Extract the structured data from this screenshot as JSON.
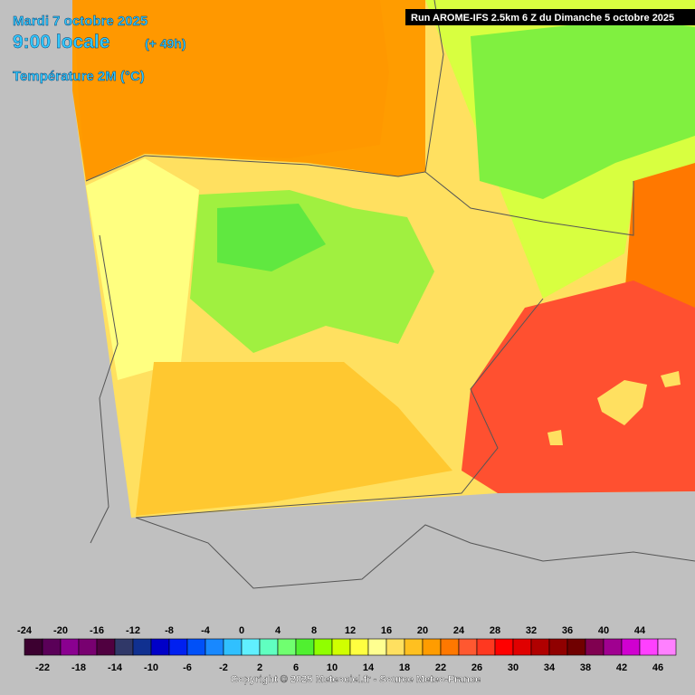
{
  "header": {
    "date": "Mardi 7 octobre 2025",
    "time": "9:00 locale",
    "lead": "(+ 49h)",
    "variable": "Température 2M (°C)",
    "run": "Run AROME-IFS 2.5km 6 Z du Dimanche 5 octobre 2025"
  },
  "legend": {
    "values": [
      -24,
      -22,
      -20,
      -18,
      -16,
      -14,
      -12,
      -10,
      -8,
      -6,
      -4,
      -2,
      0,
      2,
      4,
      6,
      8,
      10,
      12,
      14,
      16,
      18,
      20,
      22,
      24,
      26,
      28,
      30,
      32,
      34,
      36,
      38,
      40,
      42,
      44,
      46
    ],
    "colors": [
      "#3c0030",
      "#5a0058",
      "#8a0090",
      "#780070",
      "#500040",
      "#303868",
      "#103090",
      "#0000c8",
      "#0020f0",
      "#0050f8",
      "#1888ff",
      "#30c0ff",
      "#60f0ff",
      "#60ffc0",
      "#70ff70",
      "#50f030",
      "#90ff00",
      "#d0ff00",
      "#ffff40",
      "#ffff90",
      "#ffe060",
      "#ffc020",
      "#ff9c00",
      "#ff7800",
      "#ff5830",
      "#ff3820",
      "#ff0000",
      "#e00000",
      "#b00000",
      "#900000",
      "#700000",
      "#800050",
      "#a00090",
      "#d000d0",
      "#ff40ff",
      "#ff80ff"
    ]
  },
  "footer": {
    "copyright": "Copyright © 2025 Meteociel.fr - Source Meteo-France"
  }
}
